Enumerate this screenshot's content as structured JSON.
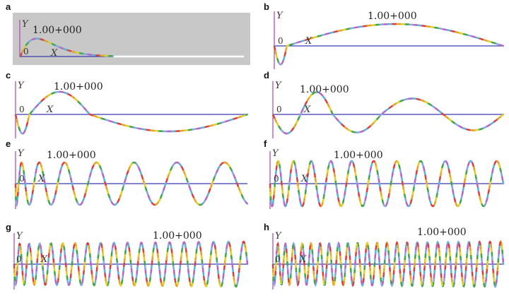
{
  "figure": {
    "colors": {
      "panel_a_background": "#c8c8c8",
      "x_axis": "#3a3ab0",
      "y_axis": "#b040b0",
      "palette": [
        "#e23b3b",
        "#f0a020",
        "#e8d020",
        "#40a840",
        "#8aa8e0",
        "#c060c0",
        "#60b0d8"
      ]
    },
    "panels": [
      {
        "id": "a",
        "letter": "a",
        "y_label": "Y",
        "x_label": "X",
        "origin": "0",
        "value": "1.00+000"
      },
      {
        "id": "b",
        "letter": "b",
        "y_label": "Y",
        "x_label": "X",
        "origin": "0",
        "value": "1.00+000"
      },
      {
        "id": "c",
        "letter": "c",
        "y_label": "Y",
        "x_label": "X",
        "origin": "0",
        "value": "1.00+000"
      },
      {
        "id": "d",
        "letter": "d",
        "y_label": "Y",
        "x_label": "X",
        "origin": "0",
        "value": "1.00+000"
      },
      {
        "id": "e",
        "letter": "e",
        "y_label": "Y",
        "x_label": "X",
        "origin": "0",
        "value": "1.00+000"
      },
      {
        "id": "f",
        "letter": "f",
        "y_label": "Y",
        "x_label": "X",
        "origin": "0",
        "value": "1.00+000"
      },
      {
        "id": "g",
        "letter": "g",
        "y_label": "Y",
        "x_label": "X",
        "origin": "0",
        "value": "1.00+000"
      },
      {
        "id": "h",
        "letter": "h",
        "y_label": "Y",
        "x_label": "X",
        "origin": "0",
        "value": "1.00+000"
      }
    ]
  }
}
